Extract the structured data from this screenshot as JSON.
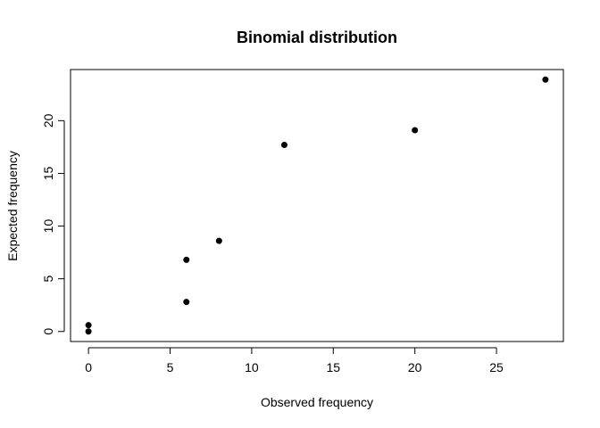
{
  "chart_data": {
    "type": "scatter",
    "title": "Binomial distribution",
    "xlabel": "Observed frequency",
    "ylabel": "Expected frequency",
    "xlim": [
      -1.1,
      29.1
    ],
    "ylim": [
      -0.95,
      24.85
    ],
    "xticks": [
      0,
      5,
      10,
      15,
      20,
      25
    ],
    "yticks": [
      0,
      5,
      10,
      15,
      20
    ],
    "grid": false,
    "points": [
      {
        "x": 0,
        "y": 0.0
      },
      {
        "x": 0,
        "y": 0.6
      },
      {
        "x": 6,
        "y": 2.8
      },
      {
        "x": 6,
        "y": 6.8
      },
      {
        "x": 8,
        "y": 8.6
      },
      {
        "x": 12,
        "y": 17.7
      },
      {
        "x": 20,
        "y": 19.1
      },
      {
        "x": 28,
        "y": 23.9
      }
    ],
    "marker_color": "#000000"
  }
}
